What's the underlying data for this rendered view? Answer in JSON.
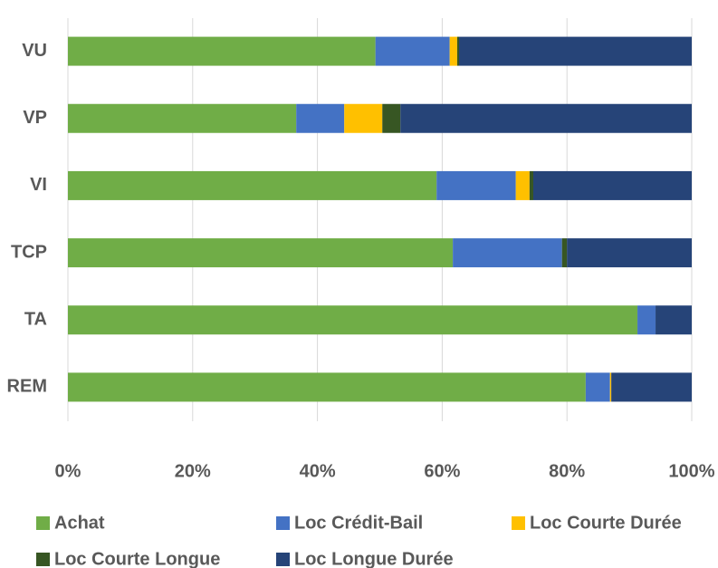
{
  "chart_data": {
    "type": "stacked_barh",
    "categories": [
      "VU",
      "VP",
      "VI",
      "TCP",
      "TA",
      "REM"
    ],
    "series": [
      {
        "name": "Achat",
        "color": "#70ad47",
        "values": [
          49.3,
          36.6,
          59.1,
          61.7,
          91.3,
          83.0
        ]
      },
      {
        "name": "Loc Crédit-Bail",
        "color": "#4472c4",
        "values": [
          11.9,
          7.7,
          12.7,
          17.5,
          2.9,
          3.9
        ]
      },
      {
        "name": "Loc Courte Durée",
        "color": "#ffc000",
        "values": [
          1.2,
          6.1,
          2.2,
          0,
          0,
          0.2
        ]
      },
      {
        "name": "Loc Courte Longue",
        "color": "#375623",
        "values": [
          0.3,
          2.9,
          0.6,
          0.8,
          0,
          0
        ]
      },
      {
        "name": "Loc Longue Durée",
        "color": "#264478",
        "values": [
          37.3,
          46.7,
          25.4,
          20.0,
          5.8,
          12.9
        ]
      }
    ],
    "xlim": [
      0,
      100
    ],
    "xticks": [
      {
        "value": 0,
        "label": "0%"
      },
      {
        "value": 20,
        "label": "20%"
      },
      {
        "value": 40,
        "label": "40%"
      },
      {
        "value": 60,
        "label": "60%"
      },
      {
        "value": 80,
        "label": "80%"
      },
      {
        "value": 100,
        "label": "100%"
      }
    ],
    "grid": true,
    "legend": "bottom"
  }
}
